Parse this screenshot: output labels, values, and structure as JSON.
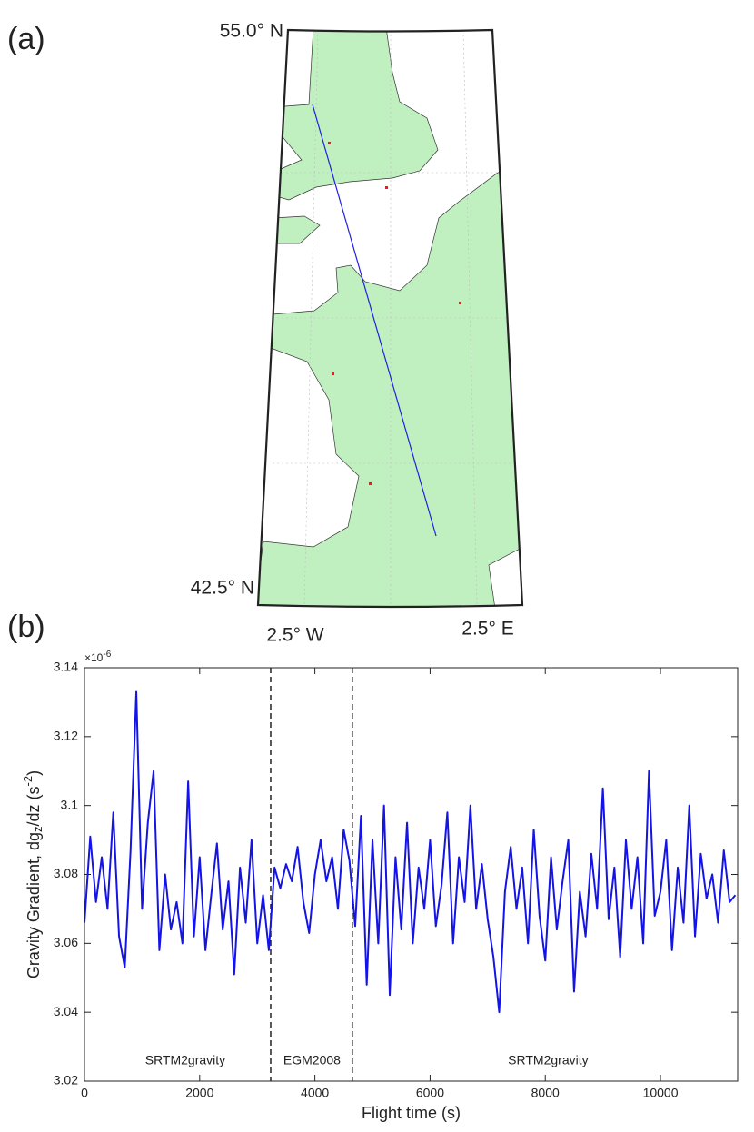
{
  "chart_data": [
    {
      "type": "map",
      "label": "(a)",
      "lat_labels": [
        "55.0° N",
        "42.5° N"
      ],
      "lon_labels": [
        "2.5° W",
        "2.5° E"
      ]
    },
    {
      "type": "line",
      "label": "(b)",
      "xlabel": "Flight time (s)",
      "ylabel": [
        "Gravity Gradient, dg",
        "z",
        "/dz (s",
        "-2",
        ")"
      ],
      "y_multiplier": [
        "×10",
        "-6"
      ],
      "xlim": [
        0,
        11340
      ],
      "ylim": [
        3.02,
        3.14
      ],
      "xticks": [
        0,
        2000,
        4000,
        6000,
        8000,
        10000
      ],
      "yticks": [
        3.02,
        3.04,
        3.06,
        3.08,
        3.1,
        3.12,
        3.14
      ],
      "vlines": [
        3233,
        4650
      ],
      "annotations": [
        {
          "text": "SRTM2gravity",
          "x": 1750
        },
        {
          "text": "EGM2008",
          "x": 3950
        },
        {
          "text": "SRTM2gravity",
          "x": 8050
        }
      ],
      "x": [
        0,
        100,
        200,
        300,
        400,
        500,
        600,
        700,
        800,
        900,
        1000,
        1100,
        1200,
        1300,
        1400,
        1500,
        1600,
        1700,
        1800,
        1900,
        2000,
        2100,
        2200,
        2300,
        2400,
        2500,
        2600,
        2700,
        2800,
        2900,
        3000,
        3100,
        3200,
        3300,
        3400,
        3500,
        3600,
        3700,
        3800,
        3900,
        4000,
        4100,
        4200,
        4300,
        4400,
        4500,
        4600,
        4700,
        4800,
        4900,
        5000,
        5100,
        5200,
        5300,
        5400,
        5500,
        5600,
        5700,
        5800,
        5900,
        6000,
        6100,
        6200,
        6300,
        6400,
        6500,
        6600,
        6700,
        6800,
        6900,
        7000,
        7100,
        7200,
        7300,
        7400,
        7500,
        7600,
        7700,
        7800,
        7900,
        8000,
        8100,
        8200,
        8300,
        8400,
        8500,
        8600,
        8700,
        8800,
        8900,
        9000,
        9100,
        9200,
        9300,
        9400,
        9500,
        9600,
        9700,
        9800,
        9900,
        10000,
        10100,
        10200,
        10300,
        10400,
        10500,
        10600,
        10700,
        10800,
        10900,
        11000,
        11100,
        11200,
        11300
      ],
      "series": [
        {
          "color": "#1414e6",
          "values": [
            3.066,
            3.091,
            3.072,
            3.085,
            3.07,
            3.098,
            3.062,
            3.053,
            3.087,
            3.133,
            3.07,
            3.095,
            3.11,
            3.058,
            3.08,
            3.064,
            3.072,
            3.06,
            3.107,
            3.062,
            3.085,
            3.058,
            3.074,
            3.089,
            3.064,
            3.078,
            3.051,
            3.082,
            3.066,
            3.09,
            3.06,
            3.074,
            3.058,
            3.082,
            3.076,
            3.083,
            3.078,
            3.088,
            3.072,
            3.063,
            3.08,
            3.09,
            3.078,
            3.085,
            3.07,
            3.093,
            3.084,
            3.065,
            3.097,
            3.048,
            3.09,
            3.06,
            3.1,
            3.045,
            3.085,
            3.064,
            3.095,
            3.06,
            3.082,
            3.07,
            3.09,
            3.065,
            3.077,
            3.098,
            3.06,
            3.085,
            3.072,
            3.1,
            3.07,
            3.083,
            3.067,
            3.056,
            3.04,
            3.075,
            3.088,
            3.07,
            3.082,
            3.06,
            3.093,
            3.068,
            3.055,
            3.085,
            3.064,
            3.078,
            3.09,
            3.046,
            3.075,
            3.062,
            3.086,
            3.07,
            3.105,
            3.067,
            3.082,
            3.056,
            3.09,
            3.07,
            3.085,
            3.06,
            3.11,
            3.068,
            3.075,
            3.09,
            3.058,
            3.082,
            3.066,
            3.1,
            3.062,
            3.086,
            3.073,
            3.08,
            3.066,
            3.087,
            3.072,
            3.074
          ]
        }
      ]
    }
  ]
}
